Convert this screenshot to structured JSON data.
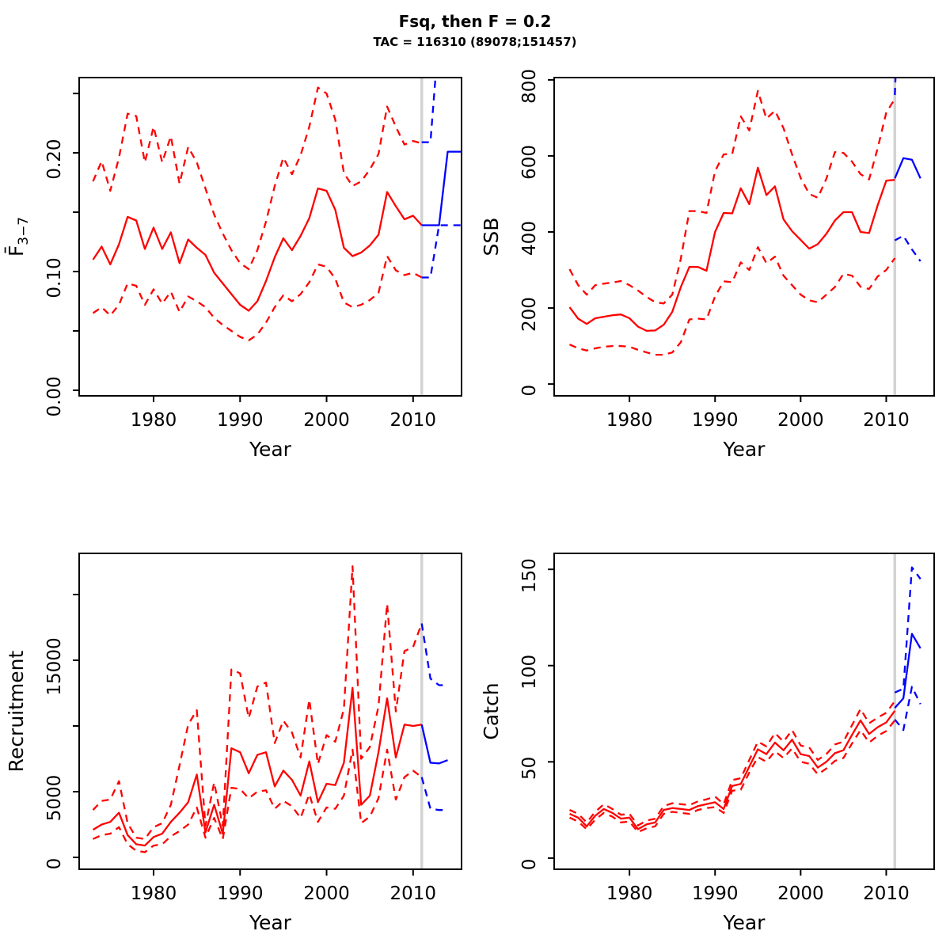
{
  "title": "Fsq, then F = 0.2",
  "subtitle": "TAC = 116310 (89078;151457)",
  "colors": {
    "history": "#ff0000",
    "forecast": "#0000ff",
    "now_line": "#d3d3d3",
    "axis": "#000000",
    "background": "#ffffff"
  },
  "years": {
    "history": [
      1973,
      1974,
      1975,
      1976,
      1977,
      1978,
      1979,
      1980,
      1981,
      1982,
      1983,
      1984,
      1985,
      1986,
      1987,
      1988,
      1989,
      1990,
      1991,
      1992,
      1993,
      1994,
      1995,
      1996,
      1997,
      1998,
      1999,
      2000,
      2001,
      2002,
      2003,
      2004,
      2005,
      2006,
      2007,
      2008,
      2009,
      2010,
      2011
    ],
    "forecast": [
      2011,
      2012,
      2013,
      2014
    ],
    "forecast_f": [
      2011,
      2012,
      2013,
      2014,
      2015.7
    ]
  },
  "chart_data": [
    {
      "id": "f",
      "type": "line",
      "ylabel": "F̄",
      "ylabel_sub": "3−7",
      "xlabel": "Year",
      "xlim": [
        1971.4,
        2015.6
      ],
      "ylim": [
        -0.0047,
        0.2634
      ],
      "xticks": [
        1980,
        1990,
        2000,
        2010
      ],
      "yticks": [
        0,
        0.05,
        0.1,
        0.15,
        0.2,
        0.25
      ],
      "ytick_labels": [
        "0.00",
        "",
        "0.10",
        "",
        "0.20",
        ""
      ],
      "now_line_year": 2011,
      "grid": false,
      "series": [
        {
          "name": "median-history",
          "years": "history",
          "color_role": "history",
          "style": "solid",
          "y": [
            0.11,
            0.121,
            0.106,
            0.123,
            0.146,
            0.143,
            0.119,
            0.137,
            0.119,
            0.133,
            0.107,
            0.127,
            0.12,
            0.114,
            0.099,
            0.09,
            0.081,
            0.072,
            0.067,
            0.075,
            0.092,
            0.112,
            0.128,
            0.118,
            0.13,
            0.145,
            0.17,
            0.168,
            0.152,
            0.12,
            0.113,
            0.116,
            0.122,
            0.131,
            0.167,
            0.155,
            0.144,
            0.147,
            0.139
          ]
        },
        {
          "name": "upper-ci-history",
          "years": "history",
          "color_role": "history",
          "style": "dashed",
          "y": [
            0.176,
            0.193,
            0.168,
            0.196,
            0.233,
            0.231,
            0.192,
            0.222,
            0.192,
            0.214,
            0.174,
            0.205,
            0.192,
            0.17,
            0.148,
            0.132,
            0.118,
            0.107,
            0.102,
            0.118,
            0.142,
            0.172,
            0.196,
            0.182,
            0.198,
            0.222,
            0.255,
            0.25,
            0.228,
            0.183,
            0.172,
            0.176,
            0.186,
            0.199,
            0.239,
            0.222,
            0.207,
            0.21,
            0.208
          ]
        },
        {
          "name": "lower-ci-history",
          "years": "history",
          "color_role": "history",
          "style": "dashed",
          "y": [
            0.065,
            0.07,
            0.063,
            0.072,
            0.09,
            0.088,
            0.072,
            0.085,
            0.073,
            0.083,
            0.066,
            0.079,
            0.075,
            0.07,
            0.061,
            0.055,
            0.05,
            0.045,
            0.042,
            0.047,
            0.057,
            0.07,
            0.08,
            0.075,
            0.081,
            0.091,
            0.106,
            0.104,
            0.094,
            0.074,
            0.07,
            0.072,
            0.076,
            0.082,
            0.113,
            0.101,
            0.097,
            0.099,
            0.095
          ]
        },
        {
          "name": "median-forecast",
          "years": "forecast_f",
          "color_role": "forecast",
          "style": "solid",
          "y": [
            0.139,
            0.139,
            0.139,
            0.201,
            0.201
          ]
        },
        {
          "name": "upper-ci-forecast",
          "years": "forecast_f",
          "color_role": "forecast",
          "style": "dashed",
          "y": [
            0.209,
            0.209,
            0.302,
            0.302,
            0.302
          ]
        },
        {
          "name": "lower-ci-forecast",
          "years": "forecast_f",
          "color_role": "forecast",
          "style": "dashed",
          "y": [
            0.095,
            0.095,
            0.139,
            0.139,
            0.139
          ]
        }
      ]
    },
    {
      "id": "ssb",
      "type": "line",
      "ylabel": "SSB",
      "xlabel": "Year",
      "xlim": [
        1971.2,
        2015.6
      ],
      "ylim": [
        -31,
        806
      ],
      "xticks": [
        1980,
        1990,
        2000,
        2010
      ],
      "yticks": [
        0,
        200,
        400,
        600,
        800
      ],
      "ytick_labels": [
        "0",
        "200",
        "400",
        "600",
        "800"
      ],
      "now_line_year": 2011,
      "grid": false,
      "series": [
        {
          "name": "median-history",
          "years": "history",
          "color_role": "history",
          "style": "solid",
          "y": [
            202,
            172,
            158,
            173,
            177,
            181,
            183,
            173,
            151,
            140,
            141,
            156,
            190,
            255,
            308,
            308,
            298,
            400,
            450,
            449,
            515,
            473,
            569,
            497,
            520,
            433,
            402,
            379,
            356,
            368,
            395,
            430,
            452,
            452,
            400,
            397,
            470,
            535,
            537
          ]
        },
        {
          "name": "upper-ci-history",
          "years": "history",
          "color_role": "history",
          "style": "dashed",
          "y": [
            302,
            260,
            235,
            260,
            264,
            267,
            271,
            260,
            246,
            229,
            215,
            212,
            235,
            330,
            455,
            455,
            450,
            560,
            604,
            605,
            704,
            667,
            771,
            698,
            719,
            673,
            604,
            542,
            500,
            490,
            540,
            610,
            608,
            585,
            552,
            538,
            620,
            714,
            750
          ]
        },
        {
          "name": "lower-ci-history",
          "years": "history",
          "color_role": "history",
          "style": "dashed",
          "y": [
            104,
            94,
            88,
            94,
            98,
            100,
            100,
            98,
            90,
            83,
            77,
            77,
            83,
            110,
            170,
            172,
            170,
            230,
            270,
            268,
            320,
            300,
            360,
            318,
            335,
            285,
            260,
            235,
            220,
            215,
            235,
            255,
            290,
            285,
            256,
            250,
            283,
            300,
            331
          ]
        },
        {
          "name": "median-forecast",
          "years": "forecast",
          "color_role": "forecast",
          "style": "solid",
          "y": [
            541,
            594,
            590,
            541
          ]
        },
        {
          "name": "upper-ci-forecast",
          "years": "forecast",
          "color_role": "forecast",
          "style": "dashed",
          "y": [
            760,
            1300,
            1300,
            1300
          ]
        },
        {
          "name": "lower-ci-forecast",
          "years": "forecast",
          "color_role": "forecast",
          "style": "dashed",
          "y": [
            378,
            390,
            354,
            323
          ]
        }
      ]
    },
    {
      "id": "recruitment",
      "type": "line",
      "ylabel": "Recruitment",
      "xlabel": "Year",
      "xlim": [
        1971.4,
        2015.6
      ],
      "ylim": [
        -904,
        23132
      ],
      "xticks": [
        1980,
        1990,
        2000,
        2010
      ],
      "yticks": [
        0,
        5000,
        10000,
        15000,
        20000
      ],
      "ytick_labels": [
        "0",
        "5000",
        "",
        "15000",
        ""
      ],
      "now_line_year": 2011,
      "grid": false,
      "series": [
        {
          "name": "median-history",
          "years": "history",
          "color_role": "history",
          "style": "solid",
          "y": [
            2100,
            2500,
            2700,
            3400,
            1700,
            1000,
            900,
            1550,
            1800,
            2700,
            3400,
            4200,
            6300,
            1900,
            4000,
            1800,
            8300,
            8000,
            6400,
            7800,
            8000,
            5400,
            6600,
            5900,
            4700,
            7300,
            4200,
            5600,
            5500,
            7200,
            12900,
            4000,
            4700,
            8000,
            12100,
            7600,
            10100,
            10000,
            10100
          ]
        },
        {
          "name": "upper-ci-history",
          "years": "history",
          "color_role": "history",
          "style": "dashed",
          "y": [
            3600,
            4300,
            4400,
            5800,
            2600,
            1500,
            1400,
            2300,
            2600,
            4000,
            7000,
            10100,
            11200,
            2400,
            5700,
            2400,
            14300,
            14000,
            10600,
            13000,
            13300,
            8700,
            10400,
            9500,
            7600,
            12000,
            7100,
            9300,
            8800,
            11300,
            22150,
            7500,
            8400,
            11500,
            19300,
            11100,
            15700,
            16000,
            17800
          ]
        },
        {
          "name": "lower-ci-history",
          "years": "history",
          "color_role": "history",
          "style": "dashed",
          "y": [
            1400,
            1700,
            1800,
            2300,
            1000,
            500,
            400,
            900,
            1000,
            1600,
            2000,
            2500,
            3800,
            1500,
            3000,
            1400,
            5300,
            5200,
            4500,
            5000,
            5100,
            3700,
            4300,
            3900,
            3000,
            4800,
            2700,
            3800,
            3700,
            4700,
            8200,
            2600,
            3100,
            4500,
            8200,
            4400,
            6100,
            6600,
            6100
          ]
        },
        {
          "name": "median-forecast",
          "years": "forecast",
          "color_role": "forecast",
          "style": "solid",
          "y": [
            10100,
            7200,
            7150,
            7400
          ]
        },
        {
          "name": "upper-ci-forecast",
          "years": "forecast",
          "color_role": "forecast",
          "style": "dashed",
          "y": [
            17800,
            13600,
            13100,
            13100
          ]
        },
        {
          "name": "lower-ci-forecast",
          "years": "forecast",
          "color_role": "forecast",
          "style": "dashed",
          "y": [
            6100,
            3700,
            3600,
            3600
          ]
        }
      ]
    },
    {
      "id": "catch",
      "type": "line",
      "ylabel": "Catch",
      "xlabel": "Year",
      "xlim": [
        1971.2,
        2015.6
      ],
      "ylim": [
        -5.8,
        158.3
      ],
      "xticks": [
        1980,
        1990,
        2000,
        2010
      ],
      "yticks": [
        0,
        50,
        100,
        150
      ],
      "ytick_labels": [
        "0",
        "50",
        "100",
        "150"
      ],
      "now_line_year": 2011,
      "grid": false,
      "series": [
        {
          "name": "median-history",
          "years": "history",
          "color_role": "history",
          "style": "solid",
          "y": [
            23,
            21,
            16.5,
            22,
            25.5,
            23.5,
            20.5,
            21,
            15,
            17.5,
            18.5,
            25,
            26,
            25.5,
            25,
            27,
            28,
            29,
            25.5,
            37.5,
            38.5,
            47.5,
            56.5,
            54,
            60,
            56,
            61.5,
            54,
            53,
            47,
            50,
            54.5,
            56,
            64,
            71.5,
            64.5,
            68,
            70.5,
            76.5
          ]
        },
        {
          "name": "upper-ci-history",
          "years": "history",
          "color_role": "history",
          "style": "dashed",
          "y": [
            25,
            23,
            18.5,
            24,
            28,
            25.5,
            22.5,
            23,
            17,
            19.5,
            20.5,
            27,
            28.5,
            28,
            27.5,
            29.5,
            30.5,
            32,
            28,
            40.5,
            41.5,
            51,
            60.5,
            58,
            65,
            60.5,
            66.5,
            58.5,
            57.5,
            51,
            54,
            59,
            60.5,
            69,
            77.5,
            70,
            73,
            75.5,
            81.5
          ]
        },
        {
          "name": "lower-ci-history",
          "years": "history",
          "color_role": "history",
          "style": "dashed",
          "y": [
            21,
            19,
            15,
            20,
            23.5,
            21.5,
            18.5,
            19,
            13.5,
            15.5,
            16.5,
            23,
            24,
            23.5,
            23,
            25,
            26,
            26.5,
            23.5,
            35,
            35.5,
            44.5,
            52.5,
            50,
            55.5,
            52,
            57,
            50,
            49,
            43.5,
            46.5,
            50.5,
            52,
            59.5,
            66.5,
            60,
            63.5,
            66,
            71.5
          ]
        },
        {
          "name": "median-forecast",
          "years": "forecast",
          "color_role": "forecast",
          "style": "solid",
          "y": [
            78,
            83,
            116.5,
            109
          ]
        },
        {
          "name": "upper-ci-forecast",
          "years": "forecast",
          "color_role": "forecast",
          "style": "dashed",
          "y": [
            86,
            88,
            151,
            145
          ]
        },
        {
          "name": "lower-ci-forecast",
          "years": "forecast",
          "color_role": "forecast",
          "style": "dashed",
          "y": [
            72,
            66.5,
            89,
            80
          ]
        }
      ]
    }
  ]
}
